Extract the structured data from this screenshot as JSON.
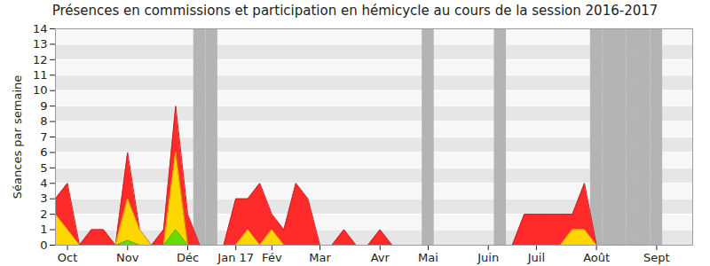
{
  "chart_data": {
    "type": "area",
    "title": "Présences en commissions et participation en hémicycle au cours de la session 2016-2017",
    "y_label": "Séances par semaine",
    "categories": [
      null,
      "Oct",
      null,
      null,
      null,
      null,
      "Nov",
      null,
      null,
      null,
      null,
      "Déc",
      null,
      null,
      null,
      "Jan 17",
      null,
      null,
      "Fév",
      null,
      null,
      null,
      "Mar",
      null,
      null,
      null,
      null,
      "Avr",
      null,
      null,
      null,
      "Mai",
      null,
      null,
      null,
      null,
      "Juin",
      null,
      null,
      null,
      "Juil",
      null,
      null,
      null,
      null,
      "Août",
      null,
      null,
      null,
      null,
      "Sept",
      null,
      null,
      null
    ],
    "shaded": [
      false,
      false,
      false,
      false,
      false,
      false,
      false,
      false,
      false,
      false,
      false,
      false,
      true,
      true,
      false,
      false,
      false,
      false,
      false,
      false,
      false,
      false,
      false,
      false,
      false,
      false,
      false,
      false,
      false,
      false,
      false,
      true,
      false,
      false,
      false,
      false,
      false,
      true,
      false,
      false,
      false,
      false,
      false,
      false,
      false,
      true,
      true,
      true,
      true,
      true,
      true,
      false,
      false,
      false
    ],
    "stacked": false,
    "series": [
      {
        "color": "#ff2a2a",
        "values": [
          3,
          4,
          0,
          1,
          1,
          0,
          6,
          1,
          0,
          1,
          9,
          2,
          0,
          0,
          0,
          3,
          3,
          4,
          2,
          1,
          4,
          3,
          0,
          0,
          1,
          0,
          0,
          1,
          0,
          0,
          0,
          0,
          0,
          0,
          0,
          0,
          0,
          0,
          0,
          2,
          2,
          2,
          2,
          2,
          4,
          0,
          0,
          0,
          0,
          0,
          0,
          0,
          0,
          0
        ]
      },
      {
        "color": "#ffd700",
        "values": [
          2,
          1,
          0,
          0,
          0,
          0,
          3,
          1,
          0,
          0,
          6,
          0,
          0,
          0,
          0,
          0,
          1,
          0,
          1,
          0,
          0,
          0,
          0,
          0,
          0,
          0,
          0,
          0,
          0,
          0,
          0,
          0,
          0,
          0,
          0,
          0,
          0,
          0,
          0,
          0,
          0,
          0,
          0,
          1,
          1,
          0,
          0,
          0,
          0,
          0,
          0,
          0,
          0,
          0
        ]
      },
      {
        "color": "#66dd00",
        "values": [
          0,
          0,
          0,
          0,
          0,
          0,
          0.3,
          0,
          0,
          0,
          1,
          0,
          0,
          0,
          0,
          0,
          0,
          0,
          0,
          0,
          0,
          0,
          0,
          0,
          0,
          0,
          0,
          0,
          0,
          0,
          0,
          0,
          0,
          0,
          0,
          0,
          0,
          0,
          0,
          0,
          0,
          0,
          0,
          0,
          0,
          0,
          0,
          0,
          0,
          0,
          0,
          0,
          0,
          0
        ]
      }
    ],
    "ylim": [
      0,
      14
    ],
    "yticks": [
      0,
      1,
      2,
      3,
      4,
      5,
      6,
      7,
      8,
      9,
      10,
      11,
      12,
      13,
      14
    ],
    "grid": true
  }
}
